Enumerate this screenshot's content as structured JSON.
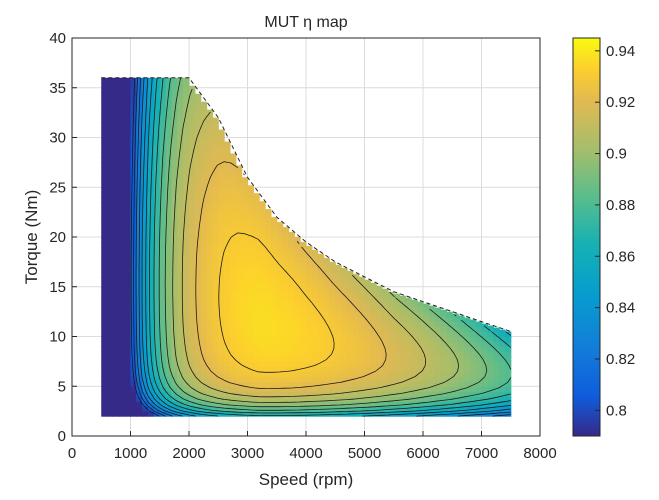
{
  "chart_data": {
    "type": "heatmap",
    "title": "MUT η map",
    "xlabel": "Speed (rpm)",
    "ylabel": "Torque (Nm)",
    "xlim": [
      0,
      8000
    ],
    "ylim": [
      0,
      40
    ],
    "x_ticks": [
      "0",
      "1000",
      "2000",
      "3000",
      "4000",
      "5000",
      "6000",
      "7000",
      "8000"
    ],
    "y_ticks": [
      "0",
      "5",
      "10",
      "15",
      "20",
      "25",
      "30",
      "35",
      "40"
    ],
    "grid": true,
    "colormap": "parula",
    "colorbar": {
      "range": [
        0.79,
        0.945
      ],
      "ticks": [
        "0.8",
        "0.82",
        "0.84",
        "0.86",
        "0.88",
        "0.9",
        "0.92",
        "0.94"
      ]
    },
    "operating_envelope": {
      "speed": [
        500,
        1000,
        1500,
        2000,
        2500,
        3000,
        3500,
        4000,
        4500,
        5000,
        5500,
        6000,
        6500,
        7000,
        7500
      ],
      "max_torque": [
        36,
        36,
        36,
        36,
        32,
        26,
        22,
        19.5,
        17.5,
        16,
        14.5,
        13.5,
        12.5,
        11.5,
        10.5
      ],
      "min_torque": 2
    },
    "peak_efficiency_region": {
      "speed": [
        2000,
        4400
      ],
      "torque": [
        8,
        25
      ],
      "efficiency": 0.94
    }
  }
}
